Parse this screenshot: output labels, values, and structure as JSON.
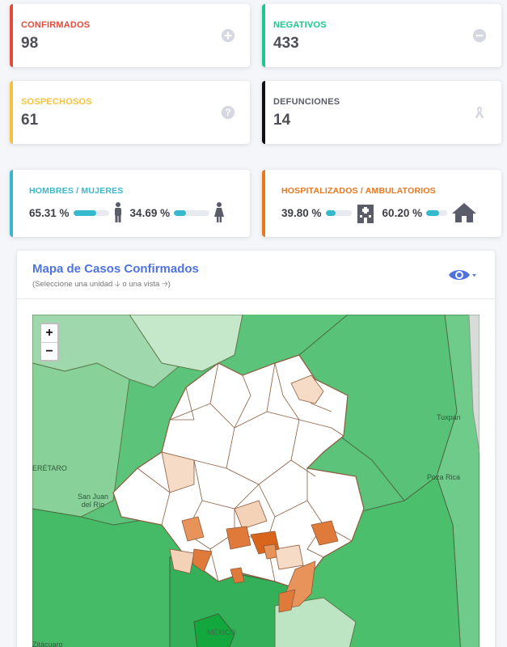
{
  "stats": {
    "confirmados": {
      "label": "CONFIRMADOS",
      "value": "98",
      "color": "#e74a3b",
      "icon": "plus-circle-icon"
    },
    "negativos": {
      "label": "NEGATIVOS",
      "value": "433",
      "color": "#1cc88a",
      "icon": "minus-circle-icon"
    },
    "sospechosos": {
      "label": "SOSPECHOSOS",
      "value": "61",
      "color": "#f6c23e",
      "icon": "question-circle-icon"
    },
    "defunciones": {
      "label": "DEFUNCIONES",
      "value": "14",
      "color": "#111111",
      "icon": "ribbon-icon"
    }
  },
  "gender": {
    "label": "HOMBRES / MUJERES",
    "men_pct": "65.31 %",
    "men_fill": 0.6531,
    "women_pct": "34.69 %",
    "women_fill": 0.3469,
    "color": "#36b9cc"
  },
  "hospital": {
    "label": "HOSPITALIZADOS / AMBULATORIOS",
    "hosp_pct": "39.80 %",
    "hosp_fill": 0.398,
    "amb_pct": "60.20 %",
    "amb_fill": 0.602,
    "color": "#e8771f"
  },
  "map": {
    "title": "Mapa de Casos Confirmados",
    "subtitle": "(Seleccione una unidad 🡣 o una vista 🡢)",
    "zoom_in": "+",
    "zoom_out": "−",
    "places": [
      "ERÉTARO",
      "San Juan del Río",
      "Tuxpan",
      "Poza Rica",
      "Zitácuaro",
      "MÉXICO"
    ]
  }
}
